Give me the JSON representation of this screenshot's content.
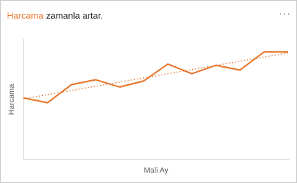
{
  "chart_data": {
    "type": "line",
    "title_highlight": "Harcama",
    "title_rest": "zamanla artar.",
    "menu": "···",
    "y_label": "Harcama",
    "x_label": "Mali Ay",
    "categories": [
      null,
      null,
      null,
      null,
      null,
      null,
      null,
      null,
      null,
      null,
      null,
      null
    ],
    "series": [
      {
        "name": "Harcama",
        "color": "#e8772e",
        "values": [
          51,
          47,
          62,
          66,
          60,
          65,
          79,
          71,
          78,
          74,
          89,
          89
        ]
      }
    ],
    "ylim": [
      0,
      100
    ],
    "trendline": true,
    "grid": false
  }
}
